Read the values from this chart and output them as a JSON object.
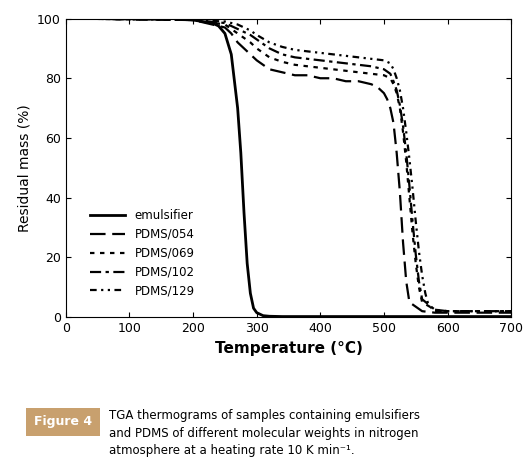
{
  "xlabel": "Temperature (°C)",
  "ylabel": "Residual mass (%)",
  "xlim": [
    0,
    700
  ],
  "ylim": [
    0,
    100
  ],
  "xticks": [
    0,
    100,
    200,
    300,
    400,
    500,
    600,
    700
  ],
  "yticks": [
    0,
    20,
    40,
    60,
    80,
    100
  ],
  "background_color": "#ffffff",
  "plot_bg_color": "#ffffff",
  "border_color": "#d4884a",
  "caption_box_color": "#c8a06e",
  "figure_label_text": "Figure 4",
  "figure_caption": "TGA thermograms of samples containing emulsifiers\nand PDMS of different molecular weights in nitrogen\natmosphere at a heating rate 10 K min⁻¹.",
  "series": [
    {
      "label": "emulsifier",
      "linestyle": "solid",
      "linewidth": 2.0,
      "color": "#000000",
      "dashes": null,
      "x": [
        0,
        100,
        180,
        200,
        215,
        230,
        240,
        250,
        260,
        270,
        275,
        280,
        285,
        290,
        295,
        300,
        310,
        320,
        340,
        360,
        380,
        400,
        500,
        600,
        700
      ],
      "y": [
        100,
        100,
        100,
        99.5,
        99,
        98.5,
        97.5,
        95,
        88,
        70,
        55,
        35,
        18,
        8,
        3,
        1.5,
        0.5,
        0.3,
        0.2,
        0.2,
        0.2,
        0.2,
        0.2,
        0.2,
        0.2
      ]
    },
    {
      "label": "PDMS/054",
      "linestyle": "dashed",
      "linewidth": 1.6,
      "color": "#000000",
      "dashes": [
        7,
        3
      ],
      "x": [
        0,
        200,
        250,
        260,
        270,
        280,
        290,
        300,
        320,
        340,
        360,
        380,
        400,
        420,
        440,
        460,
        480,
        490,
        500,
        505,
        510,
        515,
        520,
        525,
        530,
        535,
        540,
        560,
        580,
        600,
        700
      ],
      "y": [
        100,
        99.5,
        97,
        95,
        92,
        90,
        88,
        86,
        83,
        82,
        81,
        81,
        80,
        80,
        79,
        79,
        78,
        77,
        75,
        73,
        70,
        65,
        55,
        42,
        25,
        12,
        5,
        2,
        1.5,
        1.5,
        1.5
      ]
    },
    {
      "label": "PDMS/069",
      "linestyle": "dotted",
      "linewidth": 1.6,
      "color": "#000000",
      "dashes": [
        2,
        2.5
      ],
      "x": [
        0,
        200,
        250,
        260,
        270,
        280,
        290,
        300,
        320,
        340,
        360,
        380,
        400,
        420,
        440,
        460,
        480,
        500,
        510,
        515,
        520,
        525,
        530,
        535,
        540,
        545,
        550,
        555,
        560,
        580,
        600,
        700
      ],
      "y": [
        100,
        99.5,
        98,
        96.5,
        95,
        93.5,
        92,
        90,
        87,
        85.5,
        84.5,
        84,
        83.5,
        83,
        82.5,
        82,
        81.5,
        81,
        80,
        78,
        75,
        70,
        62,
        52,
        40,
        28,
        18,
        10,
        5,
        2.5,
        2,
        2
      ]
    },
    {
      "label": "PDMS/102",
      "linestyle": "dashdot",
      "linewidth": 1.6,
      "color": "#000000",
      "dashes": [
        5,
        2,
        1.5,
        2
      ],
      "x": [
        0,
        200,
        250,
        260,
        270,
        280,
        290,
        300,
        320,
        340,
        360,
        380,
        400,
        420,
        440,
        460,
        480,
        500,
        510,
        515,
        520,
        525,
        530,
        535,
        540,
        545,
        550,
        555,
        560,
        580,
        600,
        700
      ],
      "y": [
        100,
        99.5,
        98.5,
        97.5,
        96.5,
        95.5,
        94.5,
        93,
        90,
        88,
        87,
        86.5,
        86,
        85.5,
        85,
        84.5,
        84,
        83,
        81.5,
        79,
        76,
        71,
        64,
        55,
        44,
        32,
        21,
        12,
        6,
        2.5,
        2,
        2
      ]
    },
    {
      "label": "PDMS/129",
      "linestyle": "dashed",
      "linewidth": 1.6,
      "color": "#000000",
      "dashes": [
        3,
        2,
        1,
        2,
        1,
        2
      ],
      "x": [
        0,
        200,
        250,
        260,
        270,
        280,
        290,
        300,
        320,
        340,
        360,
        380,
        400,
        420,
        440,
        460,
        480,
        500,
        510,
        515,
        520,
        525,
        530,
        535,
        540,
        545,
        550,
        555,
        560,
        565,
        570,
        580,
        600,
        700
      ],
      "y": [
        100,
        99.5,
        99,
        98.5,
        98,
        97,
        96,
        94.5,
        92,
        90.5,
        89.5,
        89,
        88.5,
        88,
        87.5,
        87,
        86.5,
        86,
        85,
        83,
        80,
        76,
        70,
        62,
        53,
        43,
        32,
        22,
        14,
        8,
        4,
        2,
        2,
        2
      ]
    }
  ]
}
